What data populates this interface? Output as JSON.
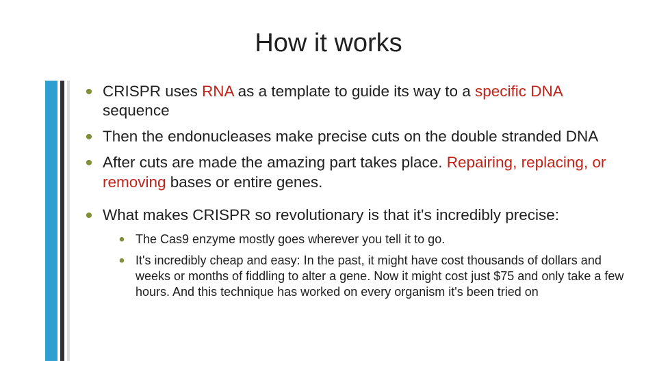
{
  "title": "How it works",
  "colors": {
    "bullet": "#7e9038",
    "emphasis": "#c02418",
    "text": "#202020",
    "stripe_blue": "#2d9fd0",
    "stripe_dark": "#323232",
    "stripe_light": "#dddddd",
    "background": "#ffffff"
  },
  "typography": {
    "title_fontsize": 38,
    "body_fontsize": 22.5,
    "sub_fontsize": 18,
    "font_family": "Candara"
  },
  "bullets": [
    {
      "segments": [
        {
          "t": "CRISPR uses "
        },
        {
          "t": "RNA",
          "em": true
        },
        {
          "t": " as a template to guide its way to a "
        },
        {
          "t": "specific DNA",
          "em": true
        },
        {
          "t": " sequence"
        }
      ]
    },
    {
      "segments": [
        {
          "t": "Then the endonucleases make precise cuts on the double stranded DNA"
        }
      ]
    },
    {
      "segments": [
        {
          "t": "After cuts are made the amazing part takes place. "
        },
        {
          "t": "Repairing, replacing, or removing",
          "em": true
        },
        {
          "t": " bases or entire genes."
        }
      ]
    },
    {
      "segments": [
        {
          "t": "What makes CRISPR so revolutionary is that it's incredibly precise:"
        }
      ],
      "sub": [
        {
          "segments": [
            {
              "t": "The Cas9 enzyme mostly goes wherever you tell it to go."
            }
          ]
        },
        {
          "segments": [
            {
              "t": "It's incredibly cheap and easy: In the past, it might have cost thousands of dollars and weeks or months of fiddling to alter a gene. Now it might cost just $75 and only take a few hours. And this technique has worked on every organism it's been tried on"
            }
          ]
        }
      ]
    }
  ]
}
